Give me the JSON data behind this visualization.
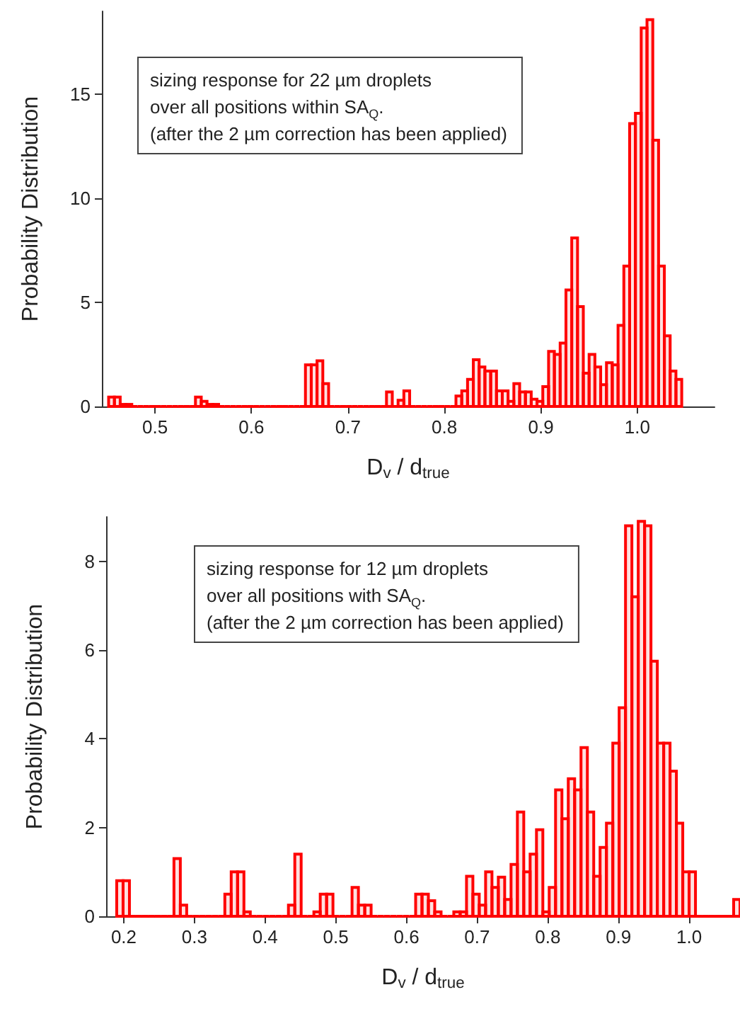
{
  "chart_data": [
    {
      "type": "histogram",
      "xlabel": "D$_{v}$ / d$_{true}$",
      "ylabel": "Probability Distribution",
      "color": "#ff0000",
      "annotations": [
        "sizing response for 22 µm droplets",
        "over all positions within SA$_{Q}$.",
        "(after the 2 µm correction has been applied)"
      ],
      "bins": [
        0.452,
        0.458,
        0.464,
        0.47,
        0.476,
        0.482,
        0.488,
        0.494,
        0.5,
        0.506,
        0.512,
        0.518,
        0.524,
        0.53,
        0.536,
        0.542,
        0.548,
        0.554,
        0.56,
        0.566,
        0.572,
        0.578,
        0.584,
        0.59,
        0.596,
        0.602,
        0.608,
        0.614,
        0.62,
        0.626,
        0.632,
        0.638,
        0.644,
        0.65,
        0.656,
        0.662,
        0.668,
        0.674,
        0.68,
        0.686,
        0.692,
        0.698,
        0.704,
        0.71,
        0.716,
        0.722,
        0.728,
        0.734,
        0.74,
        0.746,
        0.752,
        0.758,
        0.764,
        0.77,
        0.776,
        0.782,
        0.788,
        0.794,
        0.8,
        0.806,
        0.812,
        0.818,
        0.824,
        0.83,
        0.836,
        0.842,
        0.848,
        0.854,
        0.86,
        0.866,
        0.872,
        0.878,
        0.884,
        0.89,
        0.896,
        0.902,
        0.908,
        0.914,
        0.92,
        0.926,
        0.932,
        0.938,
        0.944,
        0.95,
        0.956,
        0.962,
        0.968,
        0.974,
        0.98,
        0.986,
        0.992,
        0.998,
        1.004,
        1.01,
        1.016,
        1.022,
        1.028,
        1.034,
        1.04,
        1.046
      ],
      "values": [
        0.45,
        0.45,
        0.1,
        0.1,
        0,
        0,
        0,
        0,
        0,
        0,
        0,
        0,
        0,
        0,
        0,
        0.45,
        0.25,
        0.1,
        0.1,
        0,
        0,
        0,
        0,
        0,
        0,
        0,
        0,
        0,
        0,
        0,
        0,
        0,
        0,
        0,
        2.0,
        2.0,
        2.2,
        1.1,
        0,
        0,
        0,
        0,
        0,
        0,
        0,
        0,
        0,
        0,
        0.7,
        0,
        0.3,
        0.75,
        0,
        0,
        0,
        0,
        0,
        0,
        0,
        0,
        0.5,
        0.75,
        1.3,
        2.25,
        1.9,
        1.7,
        1.7,
        0.75,
        0.75,
        0.25,
        1.1,
        0.7,
        0.7,
        0.35,
        0.25,
        0.95,
        2.65,
        2.5,
        3.05,
        5.6,
        8.1,
        4.8,
        1.6,
        2.5,
        1.9,
        1.05,
        2.1,
        2.0,
        3.9,
        6.75,
        13.6,
        14.1,
        18.2,
        18.6,
        12.8,
        6.75,
        3.4,
        1.7,
        1.3
      ],
      "xlim": [
        0.445,
        1.08
      ],
      "ylim": [
        0,
        19
      ],
      "xticks": [
        0.5,
        0.6,
        0.7,
        0.8,
        0.9,
        {
          "value": 1,
          "label": "1.0"
        }
      ],
      "yticks": [
        0,
        5,
        10,
        15
      ]
    },
    {
      "type": "histogram",
      "xlabel": "D$_{v}$ / d$_{true}$",
      "ylabel": "Probability Distribution",
      "color": "#ff0000",
      "annotations": [
        "sizing response for 12 µm droplets",
        "over all positions with SA$_{Q}$.",
        "(after the 2 µm correction has been applied)"
      ],
      "bins": [
        0.19,
        0.199,
        0.208,
        0.217,
        0.226,
        0.235,
        0.244,
        0.253,
        0.262,
        0.271,
        0.28,
        0.289,
        0.298,
        0.307,
        0.316,
        0.325,
        0.334,
        0.343,
        0.352,
        0.361,
        0.37,
        0.379,
        0.388,
        0.397,
        0.406,
        0.415,
        0.424,
        0.433,
        0.442,
        0.451,
        0.46,
        0.469,
        0.478,
        0.487,
        0.496,
        0.505,
        0.514,
        0.523,
        0.532,
        0.541,
        0.55,
        0.559,
        0.568,
        0.577,
        0.586,
        0.595,
        0.604,
        0.613,
        0.622,
        0.631,
        0.64,
        0.649,
        0.658,
        0.667,
        0.676,
        0.685,
        0.694,
        0.703,
        0.712,
        0.721,
        0.73,
        0.739,
        0.748,
        0.757,
        0.766,
        0.775,
        0.784,
        0.793,
        0.802,
        0.811,
        0.82,
        0.829,
        0.838,
        0.847,
        0.856,
        0.865,
        0.874,
        0.883,
        0.892,
        0.901,
        0.91,
        0.919,
        0.928,
        0.937,
        0.946,
        0.955,
        0.964,
        0.973,
        0.982,
        0.991,
        1.0,
        1.009,
        1.018,
        1.027,
        1.036,
        1.045,
        1.054,
        1.063,
        1.072
      ],
      "values": [
        0.8,
        0.8,
        0,
        0,
        0,
        0,
        0,
        0,
        0,
        1.3,
        0.25,
        0,
        0,
        0,
        0,
        0,
        0,
        0.5,
        1.0,
        1.0,
        0.1,
        0,
        0,
        0,
        0,
        0,
        0,
        0.25,
        1.4,
        0,
        0,
        0.1,
        0.5,
        0.5,
        0,
        0,
        0,
        0.65,
        0.25,
        0.25,
        0,
        0,
        0,
        0,
        0,
        0,
        0,
        0.5,
        0.5,
        0.35,
        0.1,
        0,
        0,
        0.1,
        0.1,
        0.9,
        0.5,
        0.25,
        1.0,
        0.65,
        0.88,
        0.38,
        1.17,
        2.35,
        1.0,
        1.4,
        1.95,
        0.1,
        0.65,
        2.85,
        2.2,
        3.1,
        2.85,
        3.8,
        2.35,
        0.9,
        1.55,
        2.1,
        3.9,
        4.7,
        8.8,
        7.2,
        8.9,
        8.8,
        5.75,
        3.9,
        3.9,
        3.27,
        2.1,
        1.0,
        1.0,
        0,
        0,
        0,
        0,
        0,
        0,
        0.38
      ],
      "xlim": [
        0.175,
        1.072
      ],
      "ylim": [
        0,
        9
      ],
      "xticks": [
        0.2,
        0.3,
        0.4,
        0.5,
        0.6,
        0.7,
        0.8,
        0.9,
        {
          "value": 1,
          "label": "1.0"
        }
      ],
      "yticks": [
        0,
        2,
        4,
        6,
        8
      ]
    }
  ]
}
